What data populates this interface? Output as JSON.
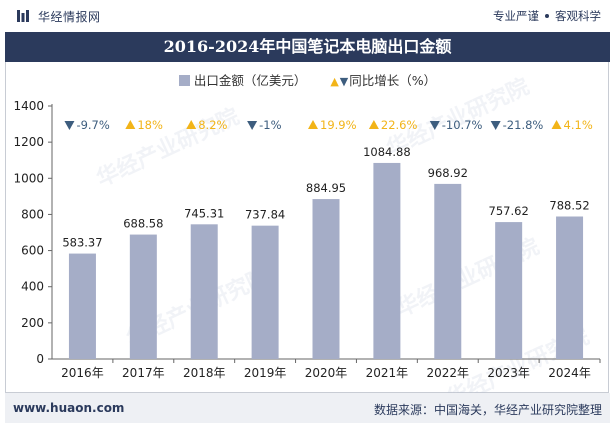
{
  "header": {
    "brand": "华经情报网",
    "slogan_left": "专业严谨",
    "slogan_right": "客观科学"
  },
  "title": "2016-2024年中国笔记本电脑出口金额",
  "legend": {
    "bar_label": "出口金额（亿美元）",
    "line_label": "同比增长（%）"
  },
  "colors": {
    "bar": "#a5adc7",
    "up": "#f2b418",
    "down": "#3d5d7e",
    "title_bg": "#2b3a5c"
  },
  "chart_data": {
    "type": "bar",
    "categories": [
      "2016年",
      "2017年",
      "2018年",
      "2019年",
      "2020年",
      "2021年",
      "2022年",
      "2023年",
      "2024年"
    ],
    "series": [
      {
        "name": "出口金额（亿美元）",
        "values": [
          583.37,
          688.58,
          745.31,
          737.84,
          884.95,
          1084.88,
          968.92,
          757.62,
          788.52
        ]
      }
    ],
    "growth": {
      "name": "同比增长（%）",
      "values": [
        -9.7,
        18,
        8.2,
        -1,
        19.9,
        22.6,
        -10.7,
        -21.8,
        4.1
      ],
      "labels": [
        "-9.7%",
        "18%",
        "8.2%",
        "-1%",
        "19.9%",
        "22.6%",
        "-10.7%",
        "-21.8%",
        "4.1%"
      ]
    },
    "value_labels": [
      "583.37",
      "688.58",
      "745.31",
      "737.84",
      "884.95",
      "1084.88",
      "968.92",
      "757.62",
      "788.52"
    ],
    "yticks": [
      0,
      200,
      400,
      600,
      800,
      1000,
      1200,
      1400
    ],
    "ylim": [
      0,
      1400
    ],
    "grid": false,
    "legend_position": "top"
  },
  "footer": {
    "url": "www.huaon.com",
    "source": "数据来源：中国海关，华经产业研究院整理"
  },
  "watermark": "华经产业研究院"
}
